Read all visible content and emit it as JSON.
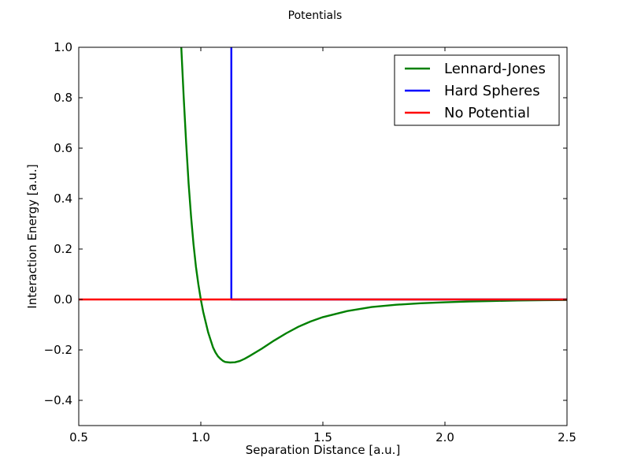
{
  "chart_data": {
    "type": "line",
    "title": "Potentials",
    "xlabel": "Separation Distance [a.u.]",
    "ylabel": "Interaction Energy [a.u.]",
    "xlim": [
      0.5,
      2.5
    ],
    "ylim": [
      -0.5,
      1.0
    ],
    "xticks": [
      0.5,
      1.0,
      1.5,
      2.0,
      2.5
    ],
    "xtick_labels": [
      "0.5",
      "1.0",
      "1.5",
      "2.0",
      "2.5"
    ],
    "yticks": [
      -0.4,
      -0.2,
      0.0,
      0.2,
      0.4,
      0.6,
      0.8,
      1.0
    ],
    "ytick_labels": [
      "−0.4",
      "−0.2",
      "0.0",
      "0.2",
      "0.4",
      "0.6",
      "0.8",
      "1.0"
    ],
    "grid": false,
    "legend_position": "top-right",
    "series": [
      {
        "name": "Lennard-Jones",
        "color": "#008000",
        "x": [
          0.92,
          0.93,
          0.94,
          0.95,
          0.96,
          0.97,
          0.98,
          0.99,
          1.0,
          1.01,
          1.02,
          1.03,
          1.04,
          1.05,
          1.06,
          1.07,
          1.08,
          1.09,
          1.1,
          1.12,
          1.14,
          1.16,
          1.18,
          1.2,
          1.25,
          1.3,
          1.35,
          1.4,
          1.45,
          1.5,
          1.6,
          1.7,
          1.8,
          1.9,
          2.0,
          2.1,
          2.2,
          2.3,
          2.4,
          2.5
        ],
        "y": [
          1.0,
          0.8,
          0.62,
          0.46,
          0.33,
          0.22,
          0.13,
          0.06,
          0.0,
          -0.05,
          -0.09,
          -0.13,
          -0.16,
          -0.19,
          -0.21,
          -0.225,
          -0.235,
          -0.243,
          -0.248,
          -0.25,
          -0.249,
          -0.244,
          -0.235,
          -0.224,
          -0.195,
          -0.163,
          -0.134,
          -0.108,
          -0.087,
          -0.07,
          -0.046,
          -0.03,
          -0.021,
          -0.015,
          -0.011,
          -0.008,
          -0.006,
          -0.004,
          -0.003,
          -0.002
        ]
      },
      {
        "name": "Hard Spheres",
        "color": "#0000ff",
        "x": [
          1.125,
          1.125,
          2.5
        ],
        "y": [
          1.0,
          0.0,
          0.0
        ]
      },
      {
        "name": "No Potential",
        "color": "#ff0000",
        "x": [
          0.5,
          2.5
        ],
        "y": [
          0.0,
          0.0
        ]
      }
    ]
  }
}
